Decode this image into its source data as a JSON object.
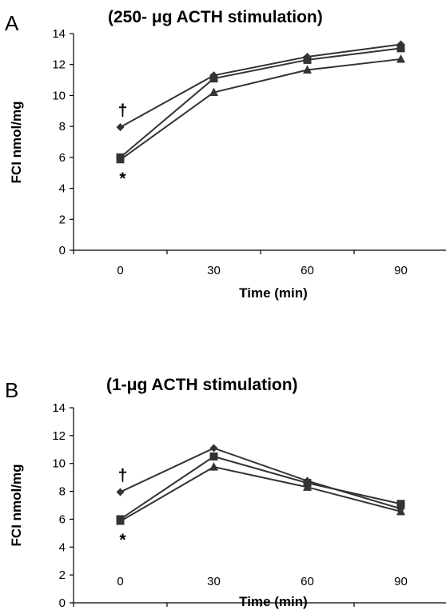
{
  "chart_data": [
    {
      "type": "line",
      "panel_label": "A",
      "title": "(250- μg ACTH stimulation)",
      "xlabel": "Time (min)",
      "ylabel": "FCI nmol/mg",
      "x": [
        0,
        30,
        60,
        90
      ],
      "x_tick_labels": [
        "0",
        "30",
        "60",
        "90"
      ],
      "ylim": [
        0,
        14
      ],
      "y_ticks": [
        0,
        2,
        4,
        6,
        8,
        10,
        12,
        14
      ],
      "grid": false,
      "series": [
        {
          "marker": "diamond",
          "values": [
            7.95,
            11.3,
            12.5,
            13.3
          ]
        },
        {
          "marker": "square",
          "values": [
            6.0,
            11.1,
            12.3,
            13.05
          ]
        },
        {
          "marker": "triangle",
          "values": [
            5.85,
            10.2,
            11.65,
            12.35
          ]
        }
      ],
      "annotations": [
        {
          "text": "†",
          "x": 0,
          "position": "above"
        },
        {
          "text": "*",
          "x": 0,
          "position": "below"
        }
      ]
    },
    {
      "type": "line",
      "panel_label": "B",
      "title": "(1-μg ACTH stimulation)",
      "xlabel": "Time (min)",
      "ylabel": "FCI nmol/mg",
      "x": [
        0,
        30,
        60,
        90
      ],
      "x_tick_labels": [
        "0",
        "30",
        "60",
        "90"
      ],
      "ylim": [
        0,
        14
      ],
      "y_ticks": [
        0,
        2,
        4,
        6,
        8,
        10,
        12,
        14
      ],
      "grid": false,
      "series": [
        {
          "marker": "diamond",
          "values": [
            7.95,
            11.1,
            8.75,
            6.75
          ]
        },
        {
          "marker": "square",
          "values": [
            6.0,
            10.5,
            8.6,
            7.1
          ]
        },
        {
          "marker": "triangle",
          "values": [
            5.85,
            9.75,
            8.3,
            6.55
          ]
        }
      ],
      "annotations": [
        {
          "text": "†",
          "x": 0,
          "position": "above"
        },
        {
          "text": "*",
          "x": 0,
          "position": "below"
        }
      ]
    }
  ],
  "colors": {
    "series": "#333333",
    "axis": "#000000"
  }
}
